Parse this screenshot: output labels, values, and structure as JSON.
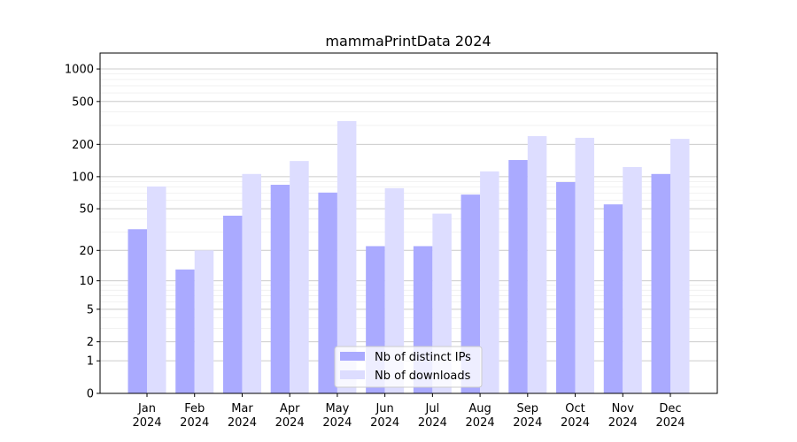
{
  "chart_data": {
    "type": "bar",
    "title": "mammaPrintData 2024",
    "xlabel": "",
    "ylabel": "",
    "yscale": "symlog (log10(y+1))",
    "ylim": [
      0,
      1400
    ],
    "yticks": [
      0,
      1,
      2,
      5,
      10,
      20,
      50,
      100,
      200,
      500,
      1000
    ],
    "grid": true,
    "legend_position": "bottom-center",
    "categories": [
      "Jan\n2024",
      "Feb\n2024",
      "Mar\n2024",
      "Apr\n2024",
      "May\n2024",
      "Jun\n2024",
      "Jul\n2024",
      "Aug\n2024",
      "Sep\n2024",
      "Oct\n2024",
      "Nov\n2024",
      "Dec\n2024"
    ],
    "series": [
      {
        "name": "Nb of distinct IPs",
        "color": "#aaaaff",
        "values": [
          32,
          13,
          43,
          84,
          71,
          22,
          22,
          68,
          143,
          89,
          55,
          106
        ]
      },
      {
        "name": "Nb of downloads",
        "color": "#ddddff",
        "values": [
          81,
          20,
          106,
          140,
          329,
          78,
          45,
          112,
          239,
          230,
          123,
          225
        ]
      }
    ]
  }
}
